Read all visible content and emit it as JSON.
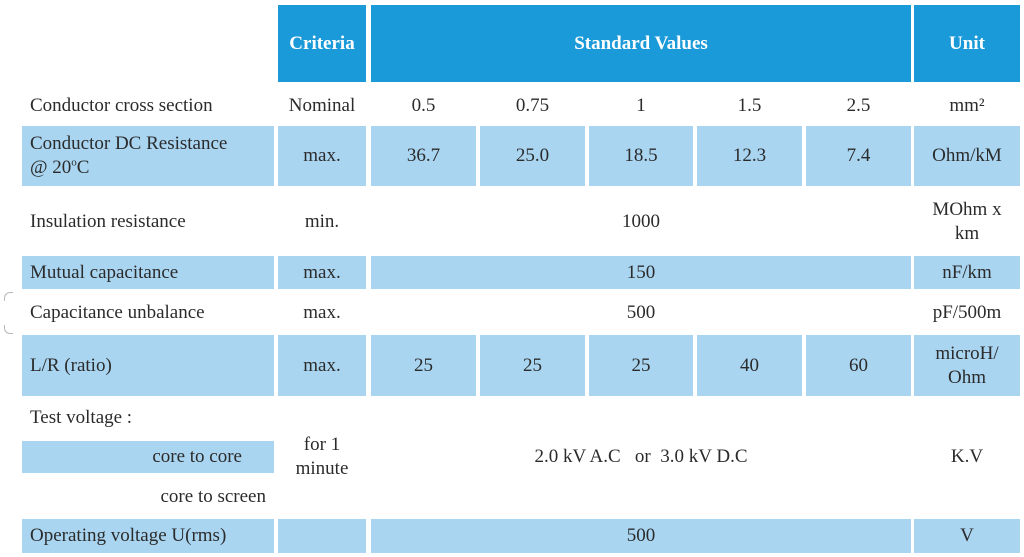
{
  "header": {
    "criteria": "Criteria",
    "standard_values": "Standard Values",
    "unit": "Unit"
  },
  "rows": {
    "cross_section": {
      "label": "Conductor cross section",
      "criteria": "Nominal",
      "values": [
        "0.5",
        "0.75",
        "1",
        "1.5",
        "2.5"
      ],
      "unit": "mm²"
    },
    "dc_resistance": {
      "label_line1": "Conductor DC Resistance",
      "label_line2_prefix": "@ 20",
      "label_line2_sup": "o",
      "label_line2_suffix": "C",
      "criteria": "max.",
      "values": [
        "36.7",
        "25.0",
        "18.5",
        "12.3",
        "7.4"
      ],
      "unit": "Ohm/kM"
    },
    "insulation": {
      "label": "Insulation resistance",
      "criteria": "min.",
      "value": "1000",
      "unit_line1": "MOhm x",
      "unit_line2": "km"
    },
    "mutual_cap": {
      "label": "Mutual capacitance",
      "criteria": "max.",
      "value": "150",
      "unit": "nF/km"
    },
    "cap_unbalance": {
      "label": "Capacitance unbalance",
      "criteria": "max.",
      "value": "500",
      "unit": "pF/500m"
    },
    "lr_ratio": {
      "label": "L/R (ratio)",
      "criteria": "max.",
      "values": [
        "25",
        "25",
        "25",
        "40",
        "60"
      ],
      "unit_line1": "microH/",
      "unit_line2": "Ohm"
    },
    "test_voltage": {
      "label": "Test voltage :",
      "sub1": "core to core",
      "sub2": "core to screen",
      "criteria_line1": "for 1",
      "criteria_line2": "minute",
      "value": "2.0 kV A.C   or  3.0 kV D.C",
      "unit": "K.V"
    },
    "operating": {
      "label": "Operating voltage  U(rms)",
      "value": "500",
      "unit": "V"
    }
  },
  "colors": {
    "header_blue": "#1b9ad9",
    "row_blue": "#a9d5f1",
    "text": "#2b2b2b"
  }
}
